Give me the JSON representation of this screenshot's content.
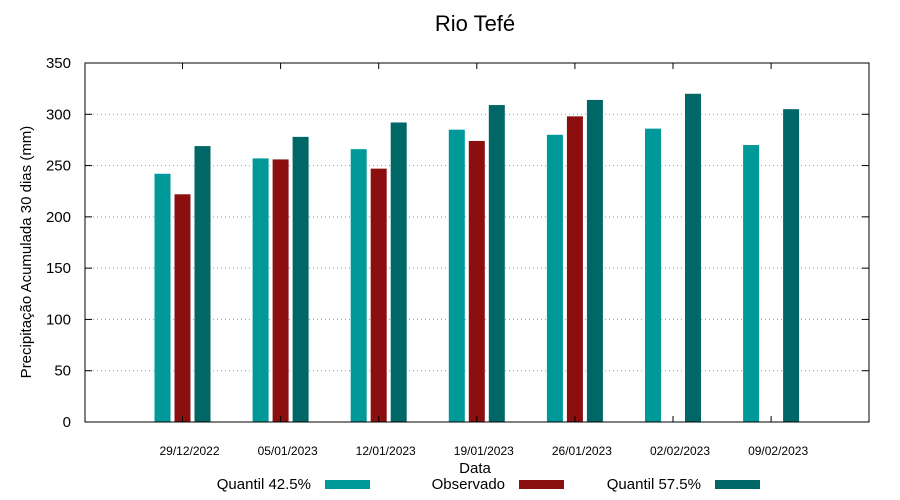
{
  "chart_data": {
    "type": "bar",
    "title": "Rio Tefé",
    "xlabel": "Data",
    "ylabel": "Precipitação Acumulada 30 dias (mm)",
    "ylim": [
      0,
      350
    ],
    "yticks": [
      "0",
      "50",
      "100",
      "150",
      "200",
      "250",
      "300",
      "350"
    ],
    "grid": "horizontal dotted",
    "legend": "bottom",
    "categories": [
      "29/12/2022",
      "05/01/2023",
      "12/01/2023",
      "19/01/2023",
      "26/01/2023",
      "02/02/2023",
      "09/02/2023"
    ],
    "series": [
      {
        "name": "Quantil 42.5%",
        "color": "#009999",
        "values": [
          242,
          257,
          266,
          285,
          280,
          286,
          270
        ]
      },
      {
        "name": "Observado",
        "color": "#8b0f0f",
        "values": [
          222,
          256,
          247,
          274,
          298,
          null,
          null
        ]
      },
      {
        "name": "Quantil 57.5%",
        "color": "#006666",
        "values": [
          269,
          278,
          292,
          309,
          314,
          320,
          305
        ]
      }
    ]
  }
}
